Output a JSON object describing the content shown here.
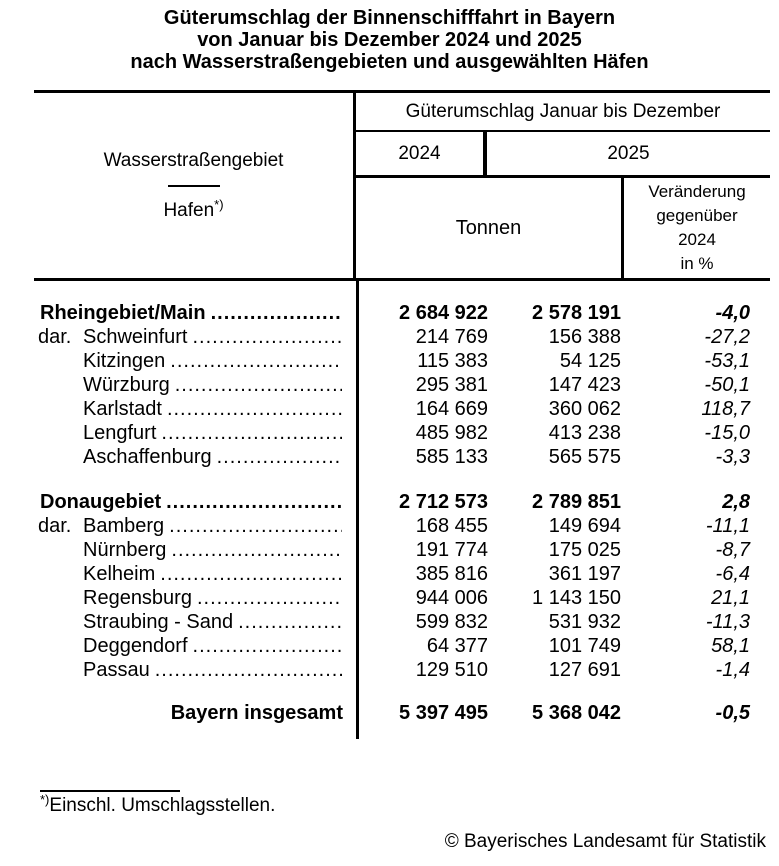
{
  "title": {
    "line1": "Güterumschlag der Binnenschifffahrt in Bayern",
    "line2": "von Januar bis Dezember 2024 und 2025",
    "line3": "nach Wasserstraßengebieten und ausgewählten Häfen"
  },
  "header": {
    "area_label": "Wasserstraßengebiet",
    "port_label": "Hafen",
    "port_footnote_mark": "*)",
    "span_title": "Güterumschlag Januar bis Dezember",
    "year_2024": "2024",
    "year_2025": "2025",
    "unit": "Tonnen",
    "change_line1": "Veränderung",
    "change_line2": "gegenüber",
    "change_line3": "2024",
    "change_line4": "in %"
  },
  "table": {
    "dar_label": "dar.",
    "sections": [
      {
        "name": "Rheingebiet/Main",
        "v2024": "2 684 922",
        "v2025": "2 578 191",
        "change": "-4,0",
        "rows": [
          {
            "name": "Schweinfurt",
            "v2024": "214 769",
            "v2025": "156 388",
            "change": "-27,2"
          },
          {
            "name": "Kitzingen",
            "v2024": "115 383",
            "v2025": "54 125",
            "change": "-53,1"
          },
          {
            "name": "Würzburg",
            "v2024": "295 381",
            "v2025": "147 423",
            "change": "-50,1"
          },
          {
            "name": "Karlstadt",
            "v2024": "164 669",
            "v2025": "360 062",
            "change": "118,7"
          },
          {
            "name": "Lengfurt",
            "v2024": "485 982",
            "v2025": "413 238",
            "change": "-15,0"
          },
          {
            "name": "Aschaffenburg",
            "v2024": "585 133",
            "v2025": "565 575",
            "change": "-3,3"
          }
        ]
      },
      {
        "name": "Donaugebiet",
        "v2024": "2 712 573",
        "v2025": "2 789 851",
        "change": "2,8",
        "rows": [
          {
            "name": "Bamberg",
            "v2024": "168 455",
            "v2025": "149 694",
            "change": "-11,1"
          },
          {
            "name": "Nürnberg",
            "v2024": "191 774",
            "v2025": "175 025",
            "change": "-8,7"
          },
          {
            "name": "Kelheim",
            "v2024": "385 816",
            "v2025": "361 197",
            "change": "-6,4"
          },
          {
            "name": "Regensburg",
            "v2024": "944 006",
            "v2025": "1 143 150",
            "change": "21,1"
          },
          {
            "name": "Straubing - Sand",
            "v2024": "599 832",
            "v2025": "531 932",
            "change": "-11,3"
          },
          {
            "name": "Deggendorf",
            "v2024": "64 377",
            "v2025": "101 749",
            "change": "58,1"
          },
          {
            "name": "Passau",
            "v2024": "129 510",
            "v2025": "127 691",
            "change": "-1,4"
          }
        ]
      }
    ],
    "total": {
      "name": "Bayern insgesamt",
      "v2024": "5 397 495",
      "v2025": "5 368 042",
      "change": "-0,5"
    }
  },
  "footnote": {
    "mark": "*)",
    "text": "Einschl. Umschlagsstellen."
  },
  "copyright": "© Bayerisches Landesamt für Statistik"
}
